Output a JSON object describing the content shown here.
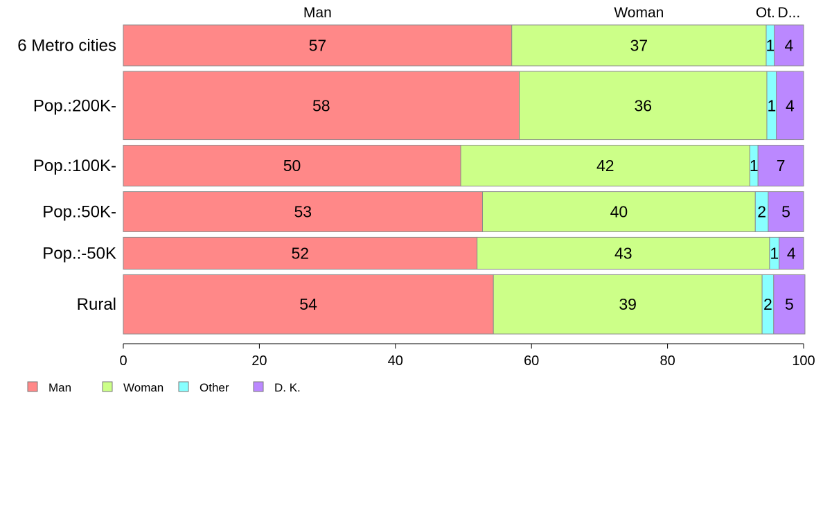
{
  "chart_data": {
    "type": "bar",
    "orientation": "horizontal",
    "stacked": true,
    "categories": [
      "6 Metro cities",
      "Pop.:200K-",
      "Pop.:100K-",
      "Pop.:50K-",
      "Pop.:-50K",
      "Rural"
    ],
    "category_weights": [
      1.0,
      1.67,
      1.0,
      0.98,
      0.78,
      1.45
    ],
    "series": [
      {
        "name": "Man",
        "color": "#ff8888",
        "values": [
          57.1,
          58.2,
          49.6,
          52.8,
          52.0,
          54.4
        ],
        "labels": [
          "57",
          "58",
          "50",
          "53",
          "52",
          "54"
        ]
      },
      {
        "name": "Woman",
        "color": "#ccff88",
        "values": [
          37.4,
          36.4,
          42.5,
          40.1,
          43.0,
          39.5
        ],
        "labels": [
          "37",
          "36",
          "42",
          "40",
          "43",
          "39"
        ]
      },
      {
        "name": "Other",
        "color": "#88ffff",
        "values": [
          1.2,
          1.4,
          1.2,
          1.9,
          1.4,
          1.7
        ],
        "labels": [
          "1",
          "1",
          "1",
          "2",
          "1",
          "2"
        ]
      },
      {
        "name": "D. K.",
        "color": "#bb88ff",
        "values": [
          4.3,
          4.0,
          6.7,
          5.2,
          3.6,
          4.6
        ],
        "labels": [
          "4",
          "4",
          "7",
          "5",
          "4",
          "5"
        ]
      }
    ],
    "top_labels": [
      "Man",
      "Woman",
      "Ot.",
      "D..."
    ],
    "xlim": [
      0,
      100
    ],
    "xticks": [
      "0",
      "20",
      "40",
      "60",
      "80",
      "100"
    ],
    "legend": {
      "placement": "bottom-left",
      "entries": [
        "Man",
        "Woman",
        "Other",
        "D. K."
      ]
    },
    "grid": false
  }
}
